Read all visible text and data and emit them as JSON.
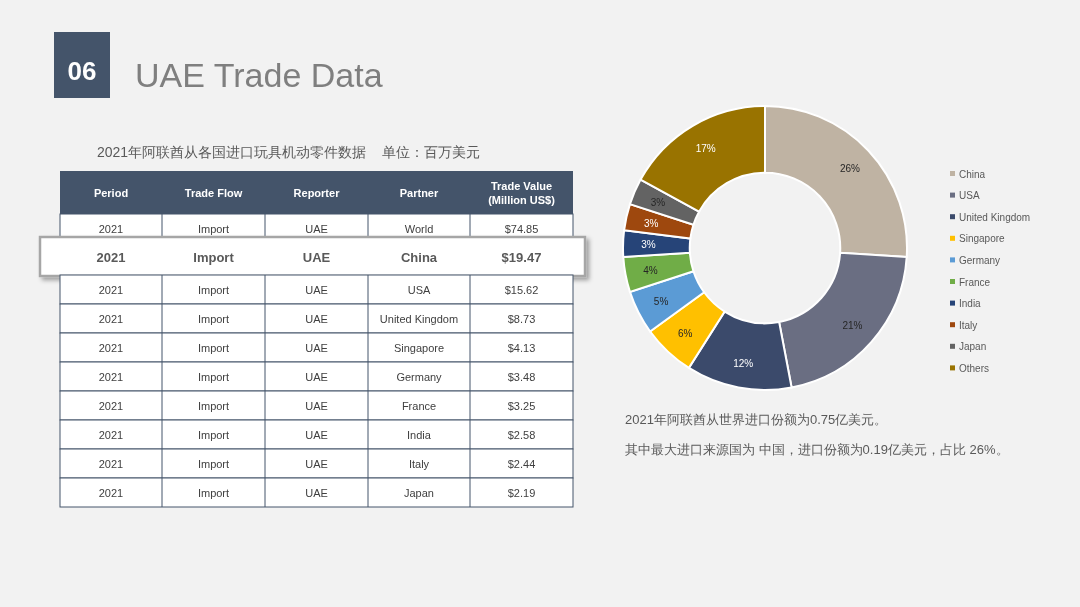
{
  "chart_data": [
    {
      "type": "other",
      "title": "UAE Trade Data",
      "subtitle": "2021年阿联酋从各国进口玩具机动零件数据    单位：百万美元",
      "categories": [
        "World",
        "China",
        "USA",
        "United Kingdom",
        "Singapore",
        "Germany",
        "France",
        "India",
        "Italy",
        "Japan"
      ],
      "value_labels": [
        "$74.85",
        "$19.47",
        "$15.62",
        "$8.73",
        "$4.13",
        "$3.48",
        "$3.25",
        "$2.58",
        "$2.44",
        "$2.19"
      ],
      "annotations": [
        "06",
        "Period",
        "Trade Flow",
        "Reporter",
        "Partner",
        "Trade Value (Million US$)",
        "2021",
        "Import",
        "UAE",
        "2021",
        "Import",
        "UAE",
        "2021",
        "Import",
        "UAE",
        "2021",
        "Import",
        "UAE",
        "2021",
        "Import",
        "UAE",
        "2021",
        "Import",
        "UAE",
        "2021",
        "Import",
        "UAE",
        "2021",
        "Import",
        "UAE",
        "2021",
        "Import",
        "UAE",
        "2021",
        "Import",
        "UAE"
      ]
    },
    {
      "type": "donut",
      "categories": [
        "China",
        "USA",
        "United Kingdom",
        "Singapore",
        "Germany",
        "France",
        "India",
        "Italy",
        "Japan",
        "Others"
      ],
      "values": [
        26,
        21,
        12,
        6,
        5,
        4,
        3,
        3,
        3,
        17
      ],
      "value_labels": [
        "26%",
        "21%",
        "12%",
        "6%",
        "5%",
        "4%",
        "3%",
        "3%",
        "3%",
        "17%"
      ],
      "colors": [
        "#bfb3a3",
        "#6a6e82",
        "#3b4a6b",
        "#ffc000",
        "#5b9bd5",
        "#70ad47",
        "#264478",
        "#9e480e",
        "#636363",
        "#997300"
      ],
      "data_labels": true,
      "legend": "right",
      "annotations": [
        "2021年阿联酋从世界进口份额为0.75亿美元。",
        "其中最大进口来源国为 中国，进口份额为0.19亿美元，占比 26%。"
      ]
    }
  ]
}
